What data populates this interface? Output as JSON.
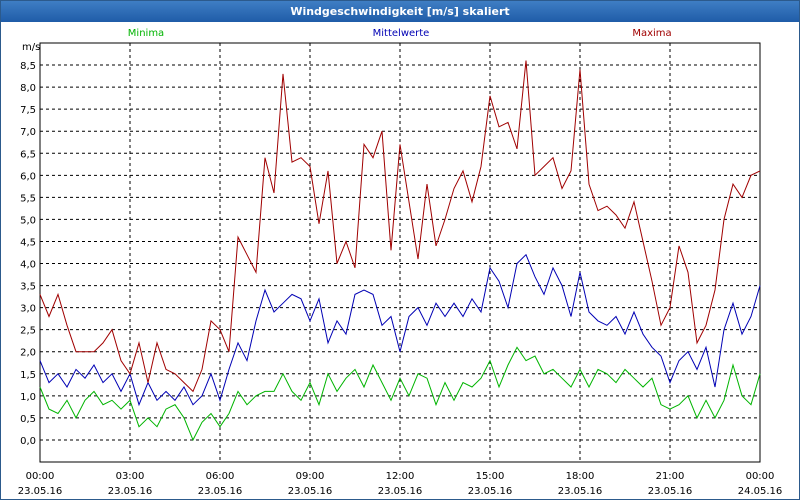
{
  "window": {
    "title": "Windgeschwindigkeit [m/s] skaliert"
  },
  "chart_data": {
    "type": "line",
    "title": "Windgeschwindigkeit [m/s] skaliert",
    "ylabel": "m/s",
    "ylim": [
      -0.5,
      9.0
    ],
    "y_ticks": [
      "8,5",
      "8,0",
      "7,5",
      "7,0",
      "6,5",
      "6,0",
      "5,5",
      "5,0",
      "4,5",
      "4,0",
      "3,5",
      "3,0",
      "2,5",
      "2,0",
      "1,5",
      "1,0",
      "0,5",
      "0,0"
    ],
    "y_tick_values": [
      8.5,
      8.0,
      7.5,
      7.0,
      6.5,
      6.0,
      5.5,
      5.0,
      4.5,
      4.0,
      3.5,
      3.0,
      2.5,
      2.0,
      1.5,
      1.0,
      0.5,
      0.0
    ],
    "xlim": [
      0,
      24
    ],
    "x_ticks": [
      {
        "time": "00:00",
        "date": "23.05.16"
      },
      {
        "time": "03:00",
        "date": "23.05.16"
      },
      {
        "time": "06:00",
        "date": "23.05.16"
      },
      {
        "time": "09:00",
        "date": "23.05.16"
      },
      {
        "time": "12:00",
        "date": "23.05.16"
      },
      {
        "time": "15:00",
        "date": "23.05.16"
      },
      {
        "time": "18:00",
        "date": "23.05.16"
      },
      {
        "time": "21:00",
        "date": "23.05.16"
      },
      {
        "time": "00:00",
        "date": "24.05.16"
      }
    ],
    "x_tick_values": [
      0,
      3,
      6,
      9,
      12,
      15,
      18,
      21,
      24
    ],
    "grid": true,
    "legend_position": "top",
    "series": [
      {
        "name": "Minima",
        "color": "#00b400",
        "points": [
          [
            0,
            1.2
          ],
          [
            0.3,
            0.7
          ],
          [
            0.6,
            0.6
          ],
          [
            0.9,
            0.9
          ],
          [
            1.2,
            0.5
          ],
          [
            1.5,
            0.9
          ],
          [
            1.8,
            1.1
          ],
          [
            2.1,
            0.8
          ],
          [
            2.4,
            0.9
          ],
          [
            2.7,
            0.7
          ],
          [
            3,
            0.9
          ],
          [
            3.3,
            0.3
          ],
          [
            3.6,
            0.5
          ],
          [
            3.9,
            0.3
          ],
          [
            4.2,
            0.7
          ],
          [
            4.5,
            0.8
          ],
          [
            4.8,
            0.5
          ],
          [
            5.1,
            0
          ],
          [
            5.4,
            0.4
          ],
          [
            5.7,
            0.6
          ],
          [
            6,
            0.3
          ],
          [
            6.3,
            0.6
          ],
          [
            6.6,
            1.1
          ],
          [
            6.9,
            0.8
          ],
          [
            7.2,
            1.0
          ],
          [
            7.5,
            1.1
          ],
          [
            7.8,
            1.1
          ],
          [
            8.1,
            1.5
          ],
          [
            8.4,
            1.1
          ],
          [
            8.7,
            0.9
          ],
          [
            9,
            1.3
          ],
          [
            9.3,
            0.8
          ],
          [
            9.6,
            1.5
          ],
          [
            9.9,
            1.1
          ],
          [
            10.2,
            1.4
          ],
          [
            10.5,
            1.6
          ],
          [
            10.8,
            1.2
          ],
          [
            11.1,
            1.7
          ],
          [
            11.4,
            1.3
          ],
          [
            11.7,
            0.9
          ],
          [
            12,
            1.4
          ],
          [
            12.3,
            1.0
          ],
          [
            12.6,
            1.5
          ],
          [
            12.9,
            1.4
          ],
          [
            13.2,
            0.8
          ],
          [
            13.5,
            1.3
          ],
          [
            13.8,
            0.9
          ],
          [
            14.1,
            1.3
          ],
          [
            14.4,
            1.2
          ],
          [
            14.7,
            1.4
          ],
          [
            15,
            1.8
          ],
          [
            15.3,
            1.2
          ],
          [
            15.6,
            1.7
          ],
          [
            15.9,
            2.1
          ],
          [
            16.2,
            1.8
          ],
          [
            16.5,
            1.9
          ],
          [
            16.8,
            1.5
          ],
          [
            17.1,
            1.6
          ],
          [
            17.4,
            1.4
          ],
          [
            17.7,
            1.2
          ],
          [
            18,
            1.6
          ],
          [
            18.3,
            1.2
          ],
          [
            18.6,
            1.6
          ],
          [
            18.9,
            1.5
          ],
          [
            19.2,
            1.3
          ],
          [
            19.5,
            1.6
          ],
          [
            19.8,
            1.4
          ],
          [
            20.1,
            1.2
          ],
          [
            20.4,
            1.4
          ],
          [
            20.7,
            0.8
          ],
          [
            21,
            0.7
          ],
          [
            21.3,
            0.8
          ],
          [
            21.6,
            1.0
          ],
          [
            21.9,
            0.5
          ],
          [
            22.2,
            0.9
          ],
          [
            22.5,
            0.5
          ],
          [
            22.8,
            0.9
          ],
          [
            23.1,
            1.7
          ],
          [
            23.4,
            1.0
          ],
          [
            23.7,
            0.8
          ],
          [
            24,
            1.5
          ]
        ]
      },
      {
        "name": "Mittelwerte",
        "color": "#0000b4",
        "points": [
          [
            0,
            1.8
          ],
          [
            0.3,
            1.3
          ],
          [
            0.6,
            1.5
          ],
          [
            0.9,
            1.2
          ],
          [
            1.2,
            1.6
          ],
          [
            1.5,
            1.4
          ],
          [
            1.8,
            1.7
          ],
          [
            2.1,
            1.3
          ],
          [
            2.4,
            1.5
          ],
          [
            2.7,
            1.1
          ],
          [
            3,
            1.5
          ],
          [
            3.3,
            0.8
          ],
          [
            3.6,
            1.3
          ],
          [
            3.9,
            0.9
          ],
          [
            4.2,
            1.1
          ],
          [
            4.5,
            0.9
          ],
          [
            4.8,
            1.2
          ],
          [
            5.1,
            0.8
          ],
          [
            5.4,
            1.0
          ],
          [
            5.7,
            1.5
          ],
          [
            6,
            0.9
          ],
          [
            6.3,
            1.6
          ],
          [
            6.6,
            2.2
          ],
          [
            6.9,
            1.8
          ],
          [
            7.2,
            2.7
          ],
          [
            7.5,
            3.4
          ],
          [
            7.8,
            2.9
          ],
          [
            8.1,
            3.1
          ],
          [
            8.4,
            3.3
          ],
          [
            8.7,
            3.2
          ],
          [
            9,
            2.7
          ],
          [
            9.3,
            3.2
          ],
          [
            9.6,
            2.2
          ],
          [
            9.9,
            2.7
          ],
          [
            10.2,
            2.4
          ],
          [
            10.5,
            3.3
          ],
          [
            10.8,
            3.4
          ],
          [
            11.1,
            3.3
          ],
          [
            11.4,
            2.6
          ],
          [
            11.7,
            2.8
          ],
          [
            12,
            2.0
          ],
          [
            12.3,
            2.8
          ],
          [
            12.6,
            3.0
          ],
          [
            12.9,
            2.6
          ],
          [
            13.2,
            3.1
          ],
          [
            13.5,
            2.8
          ],
          [
            13.8,
            3.1
          ],
          [
            14.1,
            2.8
          ],
          [
            14.4,
            3.2
          ],
          [
            14.7,
            2.9
          ],
          [
            15,
            3.9
          ],
          [
            15.3,
            3.6
          ],
          [
            15.6,
            3.0
          ],
          [
            15.9,
            4.0
          ],
          [
            16.2,
            4.2
          ],
          [
            16.5,
            3.7
          ],
          [
            16.8,
            3.3
          ],
          [
            17.1,
            3.9
          ],
          [
            17.4,
            3.5
          ],
          [
            17.7,
            2.8
          ],
          [
            18,
            3.8
          ],
          [
            18.3,
            2.9
          ],
          [
            18.6,
            2.7
          ],
          [
            18.9,
            2.6
          ],
          [
            19.2,
            2.8
          ],
          [
            19.5,
            2.4
          ],
          [
            19.8,
            2.9
          ],
          [
            20.1,
            2.4
          ],
          [
            20.4,
            2.1
          ],
          [
            20.7,
            1.9
          ],
          [
            21,
            1.3
          ],
          [
            21.3,
            1.8
          ],
          [
            21.6,
            2.0
          ],
          [
            21.9,
            1.6
          ],
          [
            22.2,
            2.1
          ],
          [
            22.5,
            1.2
          ],
          [
            22.8,
            2.5
          ],
          [
            23.1,
            3.1
          ],
          [
            23.4,
            2.4
          ],
          [
            23.7,
            2.8
          ],
          [
            24,
            3.5
          ]
        ]
      },
      {
        "name": "Maxima",
        "color": "#a00000",
        "points": [
          [
            0,
            3.3
          ],
          [
            0.3,
            2.8
          ],
          [
            0.6,
            3.3
          ],
          [
            0.9,
            2.6
          ],
          [
            1.2,
            2.0
          ],
          [
            1.5,
            2.0
          ],
          [
            1.8,
            2.0
          ],
          [
            2.1,
            2.2
          ],
          [
            2.4,
            2.5
          ],
          [
            2.7,
            1.8
          ],
          [
            3,
            1.5
          ],
          [
            3.3,
            2.2
          ],
          [
            3.6,
            1.3
          ],
          [
            3.9,
            2.2
          ],
          [
            4.2,
            1.6
          ],
          [
            4.5,
            1.5
          ],
          [
            4.8,
            1.3
          ],
          [
            5.1,
            1.1
          ],
          [
            5.4,
            1.6
          ],
          [
            5.7,
            2.7
          ],
          [
            6,
            2.5
          ],
          [
            6.3,
            2.0
          ],
          [
            6.6,
            4.6
          ],
          [
            6.9,
            4.2
          ],
          [
            7.2,
            3.8
          ],
          [
            7.5,
            6.4
          ],
          [
            7.8,
            5.6
          ],
          [
            8.1,
            8.3
          ],
          [
            8.4,
            6.3
          ],
          [
            8.7,
            6.4
          ],
          [
            9,
            6.2
          ],
          [
            9.3,
            4.9
          ],
          [
            9.6,
            6.1
          ],
          [
            9.9,
            4.0
          ],
          [
            10.2,
            4.5
          ],
          [
            10.5,
            3.9
          ],
          [
            10.8,
            6.7
          ],
          [
            11.1,
            6.4
          ],
          [
            11.4,
            7.0
          ],
          [
            11.7,
            4.3
          ],
          [
            12,
            6.7
          ],
          [
            12.3,
            5.4
          ],
          [
            12.6,
            4.1
          ],
          [
            12.9,
            5.8
          ],
          [
            13.2,
            4.4
          ],
          [
            13.5,
            5.0
          ],
          [
            13.8,
            5.7
          ],
          [
            14.1,
            6.1
          ],
          [
            14.4,
            5.4
          ],
          [
            14.7,
            6.2
          ],
          [
            15,
            7.8
          ],
          [
            15.3,
            7.1
          ],
          [
            15.6,
            7.2
          ],
          [
            15.9,
            6.6
          ],
          [
            16.2,
            8.6
          ],
          [
            16.5,
            6.0
          ],
          [
            16.8,
            6.2
          ],
          [
            17.1,
            6.4
          ],
          [
            17.4,
            5.7
          ],
          [
            17.7,
            6.1
          ],
          [
            18,
            8.4
          ],
          [
            18.3,
            5.8
          ],
          [
            18.6,
            5.2
          ],
          [
            18.9,
            5.3
          ],
          [
            19.2,
            5.1
          ],
          [
            19.5,
            4.8
          ],
          [
            19.8,
            5.4
          ],
          [
            20.1,
            4.5
          ],
          [
            20.4,
            3.6
          ],
          [
            20.7,
            2.6
          ],
          [
            21,
            3.0
          ],
          [
            21.3,
            4.4
          ],
          [
            21.6,
            3.8
          ],
          [
            21.9,
            2.2
          ],
          [
            22.2,
            2.6
          ],
          [
            22.5,
            3.4
          ],
          [
            22.8,
            5.0
          ],
          [
            23.1,
            5.8
          ],
          [
            23.4,
            5.5
          ],
          [
            23.7,
            6.0
          ],
          [
            24,
            6.1
          ]
        ]
      }
    ]
  }
}
